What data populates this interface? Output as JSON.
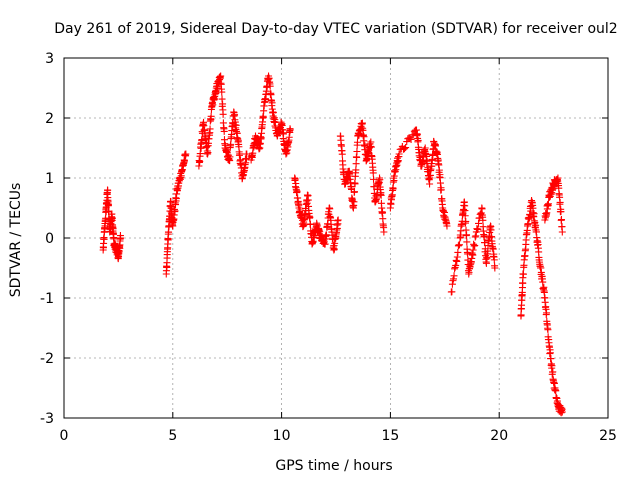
{
  "chart_data": {
    "type": "scatter",
    "title": "Day 261 of 2019, Sidereal Day-to-day VTEC variation (SDTVAR) for receiver oul2",
    "xlabel": "GPS time / hours",
    "ylabel": "SDTVAR / TECUs",
    "xlim": [
      0,
      25
    ],
    "ylim": [
      -3,
      3
    ],
    "xticks": [
      0,
      5,
      10,
      15,
      20,
      25
    ],
    "yticks": [
      -3,
      -2,
      -1,
      0,
      1,
      2,
      3
    ],
    "grid": true,
    "marker": "+",
    "series_color": "#ff0000",
    "segments": [
      {
        "x": [
          1.8,
          1.9,
          2.0,
          2.1,
          2.2,
          2.3,
          2.4,
          2.5,
          2.6
        ],
        "y": [
          -0.2,
          0.3,
          0.8,
          0.1,
          0.4,
          -0.1,
          -0.2,
          -0.3,
          0.0
        ]
      },
      {
        "x": [
          4.7,
          4.8,
          4.9,
          5.0,
          5.2,
          5.4,
          5.6
        ],
        "y": [
          -0.6,
          0.1,
          0.6,
          0.2,
          0.8,
          1.1,
          1.4
        ]
      },
      {
        "x": [
          6.2,
          6.4,
          6.6,
          6.8,
          7.0,
          7.2,
          7.4,
          7.6,
          7.8,
          8.0,
          8.2,
          8.4
        ],
        "y": [
          1.2,
          1.9,
          1.4,
          2.2,
          2.5,
          2.7,
          1.5,
          1.3,
          2.1,
          1.6,
          1.0,
          1.4
        ]
      },
      {
        "x": [
          8.6,
          8.8,
          9.0,
          9.2,
          9.4,
          9.6,
          9.8,
          10.0,
          10.2,
          10.4
        ],
        "y": [
          1.3,
          1.7,
          1.5,
          2.2,
          2.7,
          2.1,
          1.7,
          1.9,
          1.4,
          1.8
        ]
      },
      {
        "x": [
          10.6,
          10.8,
          11.0,
          11.2,
          11.4,
          11.6,
          11.8,
          12.0,
          12.2,
          12.4,
          12.6
        ],
        "y": [
          1.0,
          0.5,
          0.2,
          0.7,
          -0.1,
          0.2,
          0.0,
          -0.1,
          0.5,
          -0.2,
          0.3
        ]
      },
      {
        "x": [
          12.7,
          12.9,
          13.1,
          13.3,
          13.5,
          13.7,
          13.9,
          14.1,
          14.3,
          14.5,
          14.7
        ],
        "y": [
          1.7,
          0.9,
          1.1,
          0.5,
          1.7,
          1.9,
          1.3,
          1.6,
          0.6,
          1.0,
          0.1
        ]
      },
      {
        "x": [
          15.0,
          15.2,
          15.4,
          16.2,
          16.4,
          16.6,
          16.8,
          17.0,
          17.2,
          17.4,
          17.6
        ],
        "y": [
          0.5,
          1.1,
          1.4,
          1.8,
          1.2,
          1.5,
          0.9,
          1.6,
          1.3,
          0.5,
          0.2
        ]
      },
      {
        "x": [
          17.8,
          18.2,
          18.4,
          18.6,
          18.8,
          19.2,
          19.4,
          19.6,
          19.8
        ],
        "y": [
          -0.9,
          0.0,
          0.6,
          -0.6,
          -0.2,
          0.5,
          -0.4,
          0.2,
          -0.5
        ]
      },
      {
        "x": [
          21.0,
          21.1,
          21.3,
          21.5,
          21.7,
          21.9,
          22.1,
          22.3,
          22.5,
          22.7,
          22.9
        ],
        "y": [
          -1.3,
          -0.6,
          0.2,
          0.6,
          0.1,
          -0.5,
          -1.0,
          -1.8,
          -2.4,
          -2.8,
          -2.9
        ]
      },
      {
        "x": [
          22.1,
          22.3,
          22.5,
          22.7,
          22.9
        ],
        "y": [
          0.3,
          0.7,
          0.9,
          1.0,
          0.1
        ]
      }
    ]
  }
}
